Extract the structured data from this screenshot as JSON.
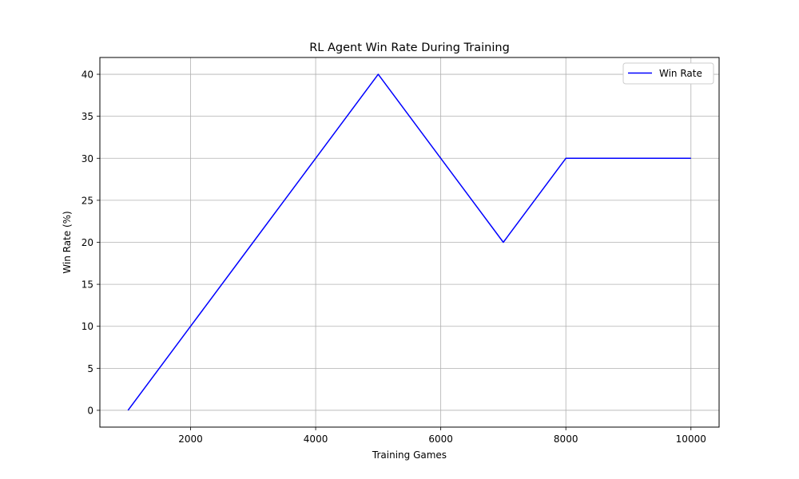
{
  "chart_data": {
    "type": "line",
    "title": "RL Agent Win Rate During Training",
    "xlabel": "Training Games",
    "ylabel": "Win Rate (%)",
    "xlim": [
      550,
      10450
    ],
    "ylim": [
      -2,
      42
    ],
    "xticks": [
      2000,
      4000,
      6000,
      8000,
      10000
    ],
    "yticks": [
      0,
      5,
      10,
      15,
      20,
      25,
      30,
      35,
      40
    ],
    "grid": true,
    "legend_position": "top-right",
    "series": [
      {
        "name": "Win Rate",
        "color": "#0000ff",
        "x": [
          1000,
          2000,
          3000,
          4000,
          5000,
          6000,
          7000,
          8000,
          9000,
          10000
        ],
        "y": [
          0,
          10,
          20,
          30,
          40,
          30,
          20,
          30,
          30,
          30
        ]
      }
    ]
  }
}
